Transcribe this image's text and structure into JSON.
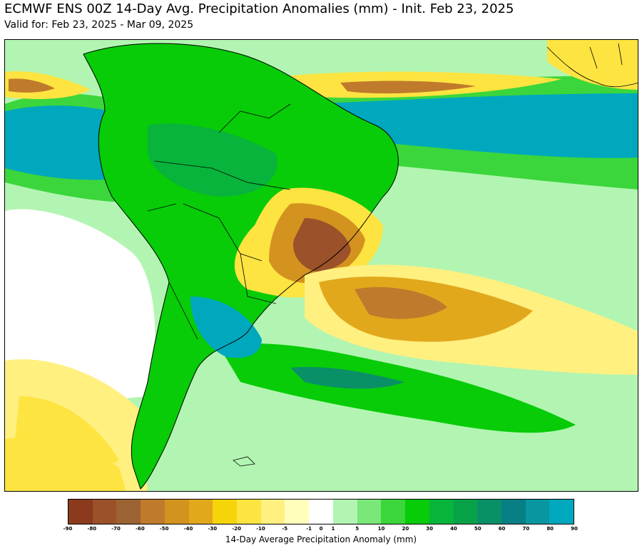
{
  "header": {
    "title": "ECMWF ENS 00Z 14-Day Avg. Precipitation Anomalies (mm) - Init. Feb 23, 2025",
    "subtitle": "Valid for: Feb 23, 2025 - Mar 09, 2025"
  },
  "map": {
    "region": "South America",
    "layers": [
      "precipitation-anomaly-shading",
      "country-borders",
      "state-borders",
      "coastlines"
    ]
  },
  "colorbar": {
    "label": "14-Day Average Precipitation Anomaly (mm)",
    "ticks": [
      "-90",
      "-80",
      "-70",
      "-60",
      "-50",
      "-40",
      "-30",
      "-20",
      "-10",
      "-5",
      "-1",
      "0",
      "1",
      "5",
      "10",
      "20",
      "30",
      "40",
      "50",
      "60",
      "70",
      "80",
      "90"
    ],
    "colors": [
      "#8c3a1e",
      "#9b5129",
      "#9b6331",
      "#c07a2c",
      "#d4931f",
      "#e2a81c",
      "#f6d40a",
      "#fde441",
      "#fff080",
      "#ffffbb",
      "#ffffff",
      "#b2f5b2",
      "#79e879",
      "#3bd63b",
      "#07cc07",
      "#08b43c",
      "#07a248",
      "#099067",
      "#077f85",
      "#0897a1",
      "#00a8be"
    ]
  },
  "palette": {
    "dry_extreme": "#8c3a1e",
    "dry": "#d4931f",
    "neutral": "#ffffff",
    "wet": "#07cc07",
    "wet_extreme": "#00a8be",
    "border": "#000000"
  }
}
